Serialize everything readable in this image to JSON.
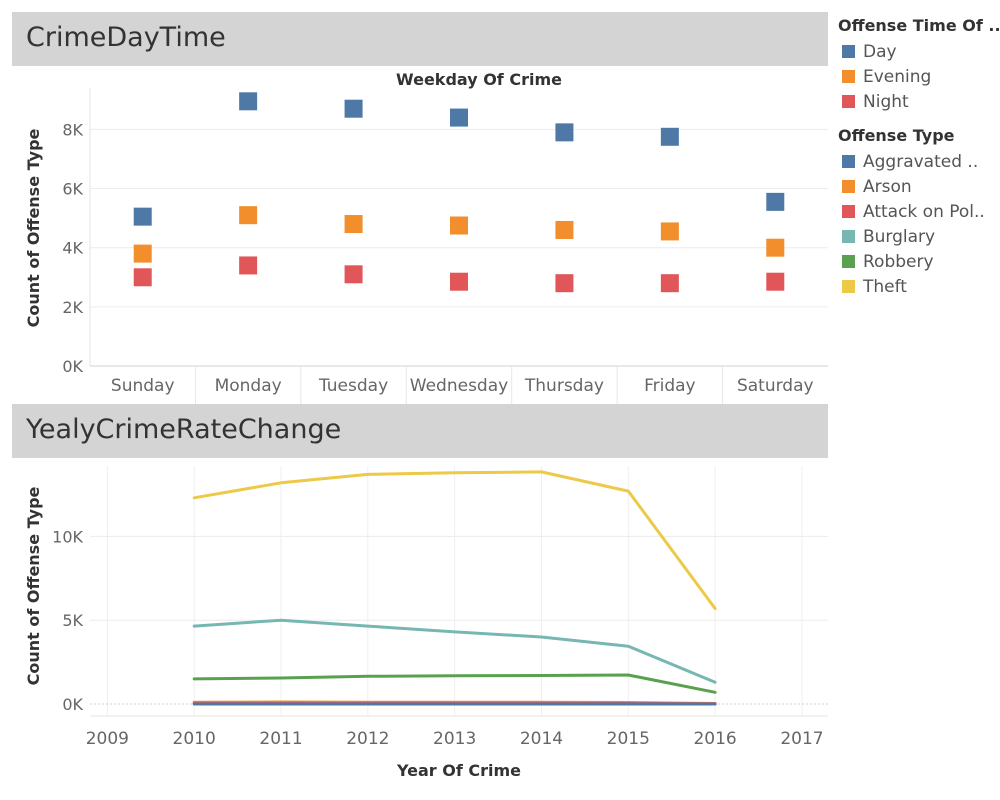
{
  "top": {
    "title": "CrimeDayTime",
    "chart_data": {
      "type": "scatter",
      "title": "CrimeDayTime",
      "header": "Weekday Of Crime",
      "ylabel": "Count of Offense Type",
      "categories": [
        "Sunday",
        "Monday",
        "Tuesday",
        "Wednesday",
        "Thursday",
        "Friday",
        "Saturday"
      ],
      "ylim": [
        0,
        9400
      ],
      "yticks": [
        0,
        2000,
        4000,
        6000,
        8000
      ],
      "ytick_labels": [
        "0K",
        "2K",
        "4K",
        "6K",
        "8K"
      ],
      "series": [
        {
          "name": "Day",
          "color": "#4e79a7",
          "values": [
            5050,
            8950,
            8700,
            8400,
            7900,
            7750,
            5550
          ]
        },
        {
          "name": "Evening",
          "color": "#f28e2b",
          "values": [
            3800,
            5100,
            4800,
            4750,
            4600,
            4550,
            4000
          ]
        },
        {
          "name": "Night",
          "color": "#e15759",
          "values": [
            3000,
            3400,
            3100,
            2850,
            2800,
            2800,
            2850
          ]
        }
      ]
    },
    "legend": {
      "title": "Offense Time Of ..",
      "items": [
        {
          "label": "Day",
          "color": "#4e79a7"
        },
        {
          "label": "Evening",
          "color": "#f28e2b"
        },
        {
          "label": "Night",
          "color": "#e15759"
        }
      ]
    }
  },
  "bottom": {
    "title": "YealyCrimeRateChange",
    "chart_data": {
      "type": "line",
      "title": "YealyCrimeRateChange",
      "xlabel": "Year Of Crime",
      "ylabel": "Count of Offense Type",
      "xlim": [
        2008.8,
        2017.3
      ],
      "xticks": [
        2009,
        2010,
        2011,
        2012,
        2013,
        2014,
        2015,
        2016,
        2017
      ],
      "xtick_labels": [
        "2009",
        "2010",
        "2011",
        "2012",
        "2013",
        "2014",
        "2015",
        "2016",
        "2017"
      ],
      "ylim": [
        0,
        14200
      ],
      "yticks": [
        0,
        5000,
        10000
      ],
      "ytick_labels": [
        "0K",
        "5K",
        "10K"
      ],
      "x": [
        2010,
        2011,
        2012,
        2013,
        2014,
        2015,
        2016
      ],
      "series": [
        {
          "name": "Theft",
          "color": "#edc948",
          "values": [
            12300,
            13200,
            13700,
            13800,
            13850,
            12700,
            5700
          ]
        },
        {
          "name": "Burglary",
          "color": "#76b7b2",
          "values": [
            4650,
            5000,
            4650,
            4300,
            4000,
            3450,
            1300
          ]
        },
        {
          "name": "Robbery",
          "color": "#59a14f",
          "values": [
            1500,
            1550,
            1650,
            1680,
            1700,
            1730,
            700
          ]
        },
        {
          "name": "Arson",
          "color": "#f28e2b",
          "values": [
            100,
            120,
            110,
            100,
            100,
            90,
            30
          ]
        },
        {
          "name": "Attack on Pol..",
          "color": "#e15759",
          "values": [
            40,
            40,
            40,
            40,
            40,
            40,
            10
          ]
        },
        {
          "name": "Aggravated ..",
          "color": "#4e79a7",
          "values": [
            0,
            0,
            0,
            0,
            0,
            0,
            0
          ]
        }
      ]
    },
    "legend": {
      "title": "Offense Type",
      "items": [
        {
          "label": "Aggravated ..",
          "color": "#4e79a7"
        },
        {
          "label": "Arson",
          "color": "#f28e2b"
        },
        {
          "label": "Attack on Pol..",
          "color": "#e15759"
        },
        {
          "label": "Burglary",
          "color": "#76b7b2"
        },
        {
          "label": "Robbery",
          "color": "#59a14f"
        },
        {
          "label": "Theft",
          "color": "#edc948"
        }
      ]
    }
  }
}
